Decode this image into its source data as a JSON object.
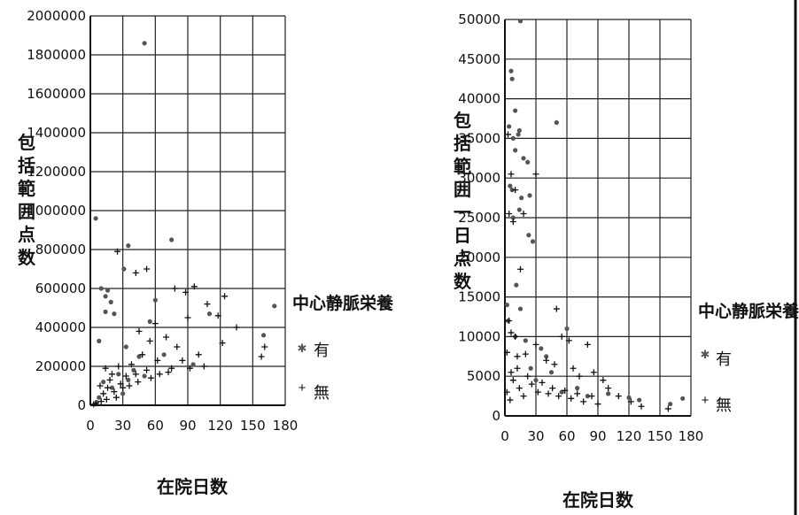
{
  "chart_data": [
    {
      "type": "scatter",
      "title": "",
      "xlabel": "在院日数",
      "ylabel": "包括範囲点数",
      "xlim": [
        0,
        180
      ],
      "ylim": [
        0,
        2000000
      ],
      "xticks": [
        "0",
        "30",
        "60",
        "90",
        "120",
        "150",
        "180"
      ],
      "yticks": [
        "0",
        "200000",
        "400000",
        "600000",
        "800000",
        "1000000",
        "1200000",
        "1400000",
        "1600000",
        "1800000",
        "2000000"
      ],
      "grid": true,
      "legend": {
        "title": "中心静脈栄養",
        "position": "right",
        "entries": [
          "有",
          "無"
        ]
      },
      "series": [
        {
          "name": "有",
          "marker": "asterisk",
          "points": [
            [
              50,
              1860000
            ],
            [
              5,
              960000
            ],
            [
              35,
              820000
            ],
            [
              75,
              850000
            ],
            [
              31,
              700000
            ],
            [
              10,
              600000
            ],
            [
              14,
              560000
            ],
            [
              16,
              590000
            ],
            [
              19,
              530000
            ],
            [
              14,
              480000
            ],
            [
              8,
              330000
            ],
            [
              22,
              470000
            ],
            [
              55,
              430000
            ],
            [
              60,
              540000
            ],
            [
              110,
              470000
            ],
            [
              160,
              360000
            ],
            [
              170,
              510000
            ],
            [
              33,
              300000
            ],
            [
              45,
              250000
            ],
            [
              68,
              260000
            ],
            [
              95,
              210000
            ],
            [
              26,
              160000
            ],
            [
              40,
              180000
            ],
            [
              12,
              120000
            ],
            [
              20,
              90000
            ],
            [
              35,
              130000
            ],
            [
              50,
              150000
            ],
            [
              30,
              60000
            ],
            [
              8,
              40000
            ],
            [
              6,
              15000
            ]
          ]
        },
        {
          "name": "無",
          "marker": "plus",
          "points": [
            [
              25,
              790000
            ],
            [
              42,
              680000
            ],
            [
              52,
              700000
            ],
            [
              78,
              600000
            ],
            [
              88,
              580000
            ],
            [
              96,
              610000
            ],
            [
              108,
              520000
            ],
            [
              118,
              460000
            ],
            [
              124,
              560000
            ],
            [
              90,
              450000
            ],
            [
              135,
              400000
            ],
            [
              122,
              320000
            ],
            [
              158,
              250000
            ],
            [
              161,
              300000
            ],
            [
              60,
              420000
            ],
            [
              45,
              380000
            ],
            [
              55,
              330000
            ],
            [
              70,
              350000
            ],
            [
              80,
              300000
            ],
            [
              85,
              230000
            ],
            [
              100,
              260000
            ],
            [
              105,
              200000
            ],
            [
              92,
              190000
            ],
            [
              62,
              230000
            ],
            [
              75,
              190000
            ],
            [
              48,
              260000
            ],
            [
              38,
              210000
            ],
            [
              42,
              160000
            ],
            [
              52,
              180000
            ],
            [
              33,
              150000
            ],
            [
              28,
              110000
            ],
            [
              22,
              70000
            ],
            [
              18,
              130000
            ],
            [
              12,
              60000
            ],
            [
              10,
              20000
            ],
            [
              5,
              10000
            ],
            [
              3,
              5000
            ],
            [
              15,
              30000
            ],
            [
              24,
              40000
            ],
            [
              30,
              90000
            ],
            [
              36,
              100000
            ],
            [
              44,
              120000
            ],
            [
              56,
              140000
            ],
            [
              64,
              160000
            ],
            [
              72,
              170000
            ],
            [
              16,
              90000
            ],
            [
              26,
              200000
            ],
            [
              20,
              160000
            ],
            [
              14,
              190000
            ],
            [
              9,
              100000
            ]
          ]
        }
      ]
    },
    {
      "type": "scatter",
      "title": "",
      "xlabel": "在院日数",
      "ylabel": "包括範囲一日点数",
      "xlim": [
        0,
        180
      ],
      "ylim": [
        0,
        50000
      ],
      "xticks": [
        "0",
        "30",
        "60",
        "90",
        "120",
        "150",
        "180"
      ],
      "yticks": [
        "0",
        "5000",
        "10000",
        "15000",
        "20000",
        "25000",
        "30000",
        "35000",
        "40000",
        "45000",
        "50000"
      ],
      "grid": true,
      "legend": {
        "title": "中心静脈栄養",
        "position": "right",
        "entries": [
          "有",
          "無"
        ]
      },
      "series": [
        {
          "name": "有",
          "marker": "asterisk",
          "points": [
            [
              15,
              49800
            ],
            [
              6,
              43500
            ],
            [
              7,
              42500
            ],
            [
              10,
              38500
            ],
            [
              4,
              36500
            ],
            [
              8,
              35000
            ],
            [
              13,
              35500
            ],
            [
              14,
              36000
            ],
            [
              50,
              37000
            ],
            [
              10,
              33500
            ],
            [
              18,
              32500
            ],
            [
              22,
              32000
            ],
            [
              5,
              29000
            ],
            [
              7,
              28500
            ],
            [
              24,
              27800
            ],
            [
              16,
              27500
            ],
            [
              14,
              26000
            ],
            [
              8,
              25000
            ],
            [
              23,
              22800
            ],
            [
              27,
              22000
            ],
            [
              11,
              16500
            ],
            [
              15,
              13500
            ],
            [
              60,
              11000
            ],
            [
              3,
              12000
            ],
            [
              20,
              9500
            ],
            [
              35,
              8500
            ],
            [
              40,
              7500
            ],
            [
              25,
              6000
            ],
            [
              45,
              5500
            ],
            [
              70,
              3500
            ],
            [
              100,
              2800
            ],
            [
              120,
              2300
            ],
            [
              130,
              2000
            ],
            [
              160,
              1500
            ],
            [
              172,
              2200
            ],
            [
              2,
              14000
            ],
            [
              30,
              4500
            ],
            [
              55,
              3000
            ],
            [
              80,
              2500
            ],
            [
              10,
              10000
            ]
          ]
        },
        {
          "name": "無",
          "marker": "plus",
          "points": [
            [
              3,
              35500
            ],
            [
              6,
              30500
            ],
            [
              10,
              28500
            ],
            [
              30,
              30500
            ],
            [
              4,
              25500
            ],
            [
              8,
              24500
            ],
            [
              18,
              25500
            ],
            [
              15,
              18500
            ],
            [
              4,
              12000
            ],
            [
              50,
              13500
            ],
            [
              6,
              10500
            ],
            [
              10,
              10000
            ],
            [
              30,
              9000
            ],
            [
              55,
              10000
            ],
            [
              62,
              9500
            ],
            [
              80,
              9000
            ],
            [
              2,
              8000
            ],
            [
              12,
              7500
            ],
            [
              20,
              7800
            ],
            [
              40,
              7000
            ],
            [
              48,
              6500
            ],
            [
              66,
              6000
            ],
            [
              72,
              5000
            ],
            [
              86,
              5500
            ],
            [
              95,
              4500
            ],
            [
              100,
              3500
            ],
            [
              110,
              2500
            ],
            [
              122,
              1800
            ],
            [
              132,
              1200
            ],
            [
              158,
              900
            ],
            [
              2,
              3000
            ],
            [
              5,
              2000
            ],
            [
              8,
              4500
            ],
            [
              14,
              3500
            ],
            [
              18,
              2500
            ],
            [
              22,
              5000
            ],
            [
              26,
              4000
            ],
            [
              32,
              3000
            ],
            [
              36,
              4200
            ],
            [
              42,
              2800
            ],
            [
              46,
              3500
            ],
            [
              52,
              2500
            ],
            [
              58,
              3200
            ],
            [
              64,
              2200
            ],
            [
              70,
              2800
            ],
            [
              76,
              1800
            ],
            [
              84,
              2500
            ],
            [
              90,
              1500
            ],
            [
              6,
              5500
            ],
            [
              12,
              6000
            ]
          ]
        }
      ]
    }
  ]
}
